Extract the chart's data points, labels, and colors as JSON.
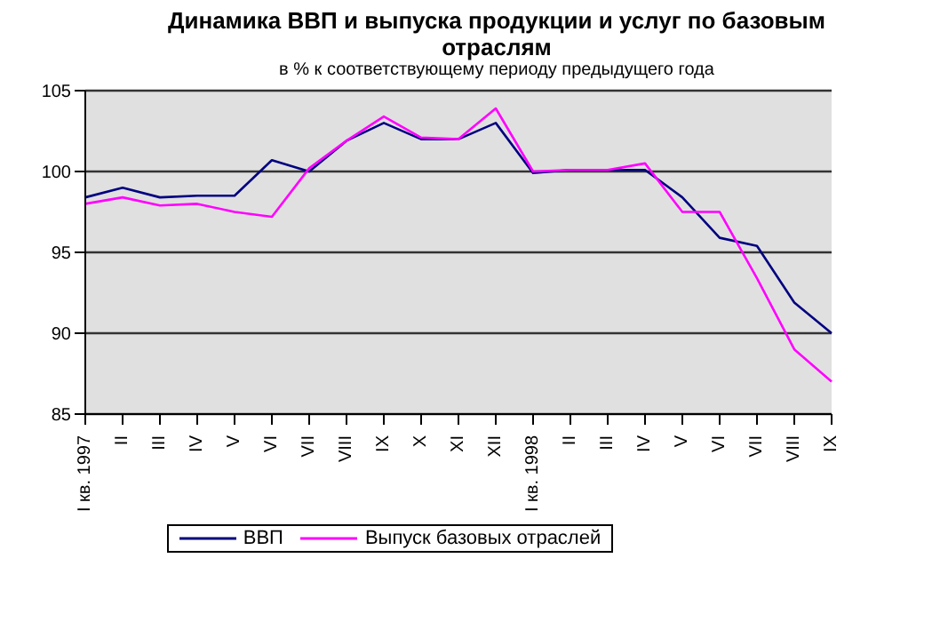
{
  "chart_data": {
    "type": "line",
    "title": "Динамика ВВП и выпуска продукции и услуг по базовым отраслям",
    "subtitle": "в % к соответствующему периоду предыдущего года",
    "categories": [
      "I кв. 1997",
      "II",
      "III",
      "IV",
      "V",
      "VI",
      "VII",
      "VIII",
      "IX",
      "X",
      "XI",
      "XII",
      "I кв. 1998",
      "II",
      "III",
      "IV",
      "V",
      "VI",
      "VII",
      "VIII",
      "IX"
    ],
    "series": [
      {
        "name": "ВВП",
        "color": "#000080",
        "values": [
          98.4,
          99.0,
          98.4,
          98.5,
          98.5,
          100.7,
          100.0,
          101.9,
          103.0,
          102.0,
          102.0,
          103.0,
          99.9,
          100.1,
          100.1,
          100.1,
          98.4,
          95.9,
          95.4,
          91.9,
          90.0
        ]
      },
      {
        "name": "Выпуск базовых отраслей",
        "color": "#ff00ff",
        "values": [
          98.0,
          98.4,
          97.9,
          98.0,
          97.5,
          97.2,
          100.2,
          101.9,
          103.4,
          102.1,
          102.0,
          103.9,
          100.0,
          100.1,
          100.1,
          100.5,
          97.5,
          97.5,
          93.4,
          89.0,
          87.0
        ]
      }
    ],
    "ylim": [
      85,
      105
    ],
    "yticks": [
      85,
      90,
      95,
      100,
      105
    ],
    "grid": "y",
    "legend": "bottom",
    "marker": "none",
    "line_style": "solid"
  }
}
